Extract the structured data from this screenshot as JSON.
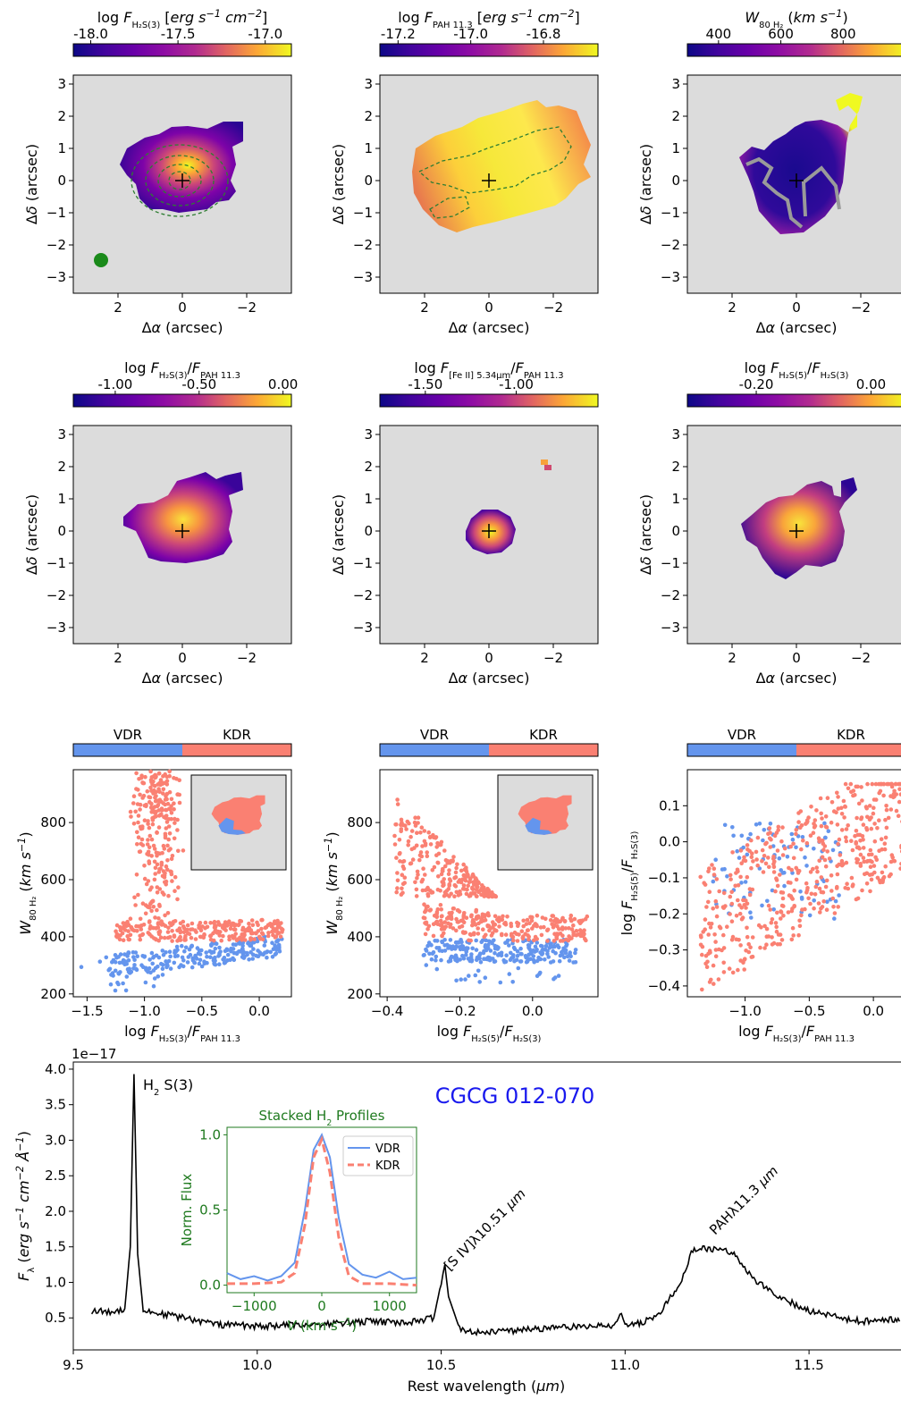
{
  "colors": {
    "map_bg": "#dcdcdc",
    "vdr": "#6495ed",
    "kdr": "#fa8072",
    "contour_dark": "#2e7d32",
    "gray_contour": "#909090",
    "psf": "#1a8a1a",
    "label_blue": "#1a1aee",
    "inset_green": "#1f7a1f"
  },
  "icons": {
    "center_marker": "plus-cross",
    "psf_marker": "filled-circle"
  },
  "maps": [
    {
      "title": "log F_H2S(3) [erg s^-1 cm^-2]",
      "cbar_ticks": [
        "-18.0",
        "-17.5",
        "-17.0"
      ],
      "cbar_range": [
        -18.1,
        -16.85
      ],
      "cbar_tick_values": [
        -18.0,
        -17.5,
        -17.0
      ],
      "xlabel": "Δα (arcsec)",
      "ylabel": "Δδ (arcsec)",
      "x_ticks": [
        "2",
        "0",
        "−2"
      ],
      "y_ticks": [
        "3",
        "2",
        "1",
        "0",
        "−1",
        "−2",
        "−3"
      ],
      "has_contours": true,
      "has_psf": true
    },
    {
      "title": "log F_PAH11.3 [erg s^-1 cm^-2]",
      "cbar_ticks": [
        "-17.2",
        "-17.0",
        "-16.8"
      ],
      "cbar_range": [
        -17.25,
        -16.65
      ],
      "cbar_tick_values": [
        -17.2,
        -17.0,
        -16.8
      ],
      "xlabel": "Δα (arcsec)",
      "ylabel": "Δδ (arcsec)",
      "x_ticks": [
        "2",
        "0",
        "−2"
      ],
      "y_ticks": [
        "3",
        "2",
        "1",
        "0",
        "−1",
        "−2",
        "−3"
      ],
      "has_contours": true,
      "has_psf": false
    },
    {
      "title": "W80 H2 (km s^-1)",
      "cbar_ticks": [
        "400",
        "600",
        "800"
      ],
      "cbar_range": [
        300,
        1000
      ],
      "cbar_tick_values": [
        400,
        600,
        800
      ],
      "xlabel": "Δα (arcsec)",
      "ylabel": "Δδ (arcsec)",
      "x_ticks": [
        "2",
        "0",
        "−2"
      ],
      "y_ticks": [
        "3",
        "2",
        "1",
        "0",
        "−1",
        "−2",
        "−3"
      ],
      "has_contours": true,
      "has_psf": false
    },
    {
      "title": "log F_H2S(3)/F_PAH11.3",
      "cbar_ticks": [
        "-1.00",
        "-0.50",
        "0.00"
      ],
      "cbar_range": [
        -1.25,
        0.05
      ],
      "cbar_tick_values": [
        -1.0,
        -0.5,
        0.0
      ],
      "xlabel": "Δα (arcsec)",
      "ylabel": "Δδ (arcsec)",
      "x_ticks": [
        "2",
        "0",
        "−2"
      ],
      "y_ticks": [
        "3",
        "2",
        "1",
        "0",
        "−1",
        "−2",
        "−3"
      ],
      "has_contours": false,
      "has_psf": false
    },
    {
      "title": "log F_[FeII]5.34μm/F_PAH11.3",
      "cbar_ticks": [
        "-1.50",
        "-1.00"
      ],
      "cbar_range": [
        -1.75,
        -0.55
      ],
      "cbar_tick_values": [
        -1.5,
        -1.0
      ],
      "xlabel": "Δα (arcsec)",
      "ylabel": "Δδ (arcsec)",
      "x_ticks": [
        "2",
        "0",
        "−2"
      ],
      "y_ticks": [
        "3",
        "2",
        "1",
        "0",
        "−1",
        "−2",
        "−3"
      ],
      "has_contours": false,
      "has_psf": false
    },
    {
      "title": "log F_H2S(5)/F_H2S(3)",
      "cbar_ticks": [
        "-0.20",
        "0.00"
      ],
      "cbar_range": [
        -0.32,
        0.06
      ],
      "cbar_tick_values": [
        -0.2,
        0.0
      ],
      "xlabel": "Δα (arcsec)",
      "ylabel": "Δδ (arcsec)",
      "x_ticks": [
        "2",
        "0",
        "−2"
      ],
      "y_ticks": [
        "3",
        "2",
        "1",
        "0",
        "−1",
        "−2",
        "−3"
      ],
      "has_contours": false,
      "has_psf": false
    }
  ],
  "chart_data": [
    {
      "type": "scatter",
      "id": "scatter1",
      "legend_bar": [
        "VDR",
        "KDR"
      ],
      "xlabel": "log F_H2S(3)/F_PAH11.3",
      "ylabel": "W80 H2 (km s^-1)",
      "x_ticks": [
        -1.5,
        -1.0,
        -0.5,
        0.0
      ],
      "y_ticks": [
        200,
        400,
        600,
        800
      ],
      "xlim": [
        -1.62,
        0.28
      ],
      "ylim": [
        190,
        985
      ],
      "series": [
        {
          "name": "VDR",
          "x_range": [
            -1.55,
            0.2
          ],
          "y_range": [
            220,
            410
          ]
        },
        {
          "name": "KDR",
          "x_range": [
            -1.3,
            0.22
          ],
          "y_range": [
            370,
            980
          ]
        }
      ],
      "has_inset": true
    },
    {
      "type": "scatter",
      "id": "scatter2",
      "legend_bar": [
        "VDR",
        "KDR"
      ],
      "xlabel": "log F_H2S(5)/F_H2S(3)",
      "ylabel": "W80 H2 (km s^-1)",
      "x_ticks": [
        -0.4,
        -0.2,
        0.0
      ],
      "y_ticks": [
        200,
        400,
        600,
        800
      ],
      "xlim": [
        -0.42,
        0.18
      ],
      "ylim": [
        190,
        985
      ],
      "series": [
        {
          "name": "VDR",
          "x_range": [
            -0.32,
            0.12
          ],
          "y_range": [
            210,
            395
          ]
        },
        {
          "name": "KDR",
          "x_range": [
            -0.4,
            0.15
          ],
          "y_range": [
            370,
            890
          ]
        }
      ],
      "has_inset": true
    },
    {
      "type": "scatter",
      "id": "scatter3",
      "legend_bar": [
        "VDR",
        "KDR"
      ],
      "xlabel": "log F_H2S(3)/F_PAH11.3",
      "ylabel": "log F_H2S(5)/F_H2S(3)",
      "x_ticks": [
        -1.0,
        -0.5,
        0.0
      ],
      "y_ticks": [
        0.1,
        0.0,
        -0.1,
        -0.2,
        -0.3,
        -0.4
      ],
      "xlim": [
        -1.45,
        0.25
      ],
      "ylim": [
        -0.43,
        0.2
      ],
      "series": [
        {
          "name": "VDR",
          "x_range": [
            -1.25,
            -0.2
          ],
          "y_range": [
            -0.25,
            0.07
          ]
        },
        {
          "name": "KDR",
          "x_range": [
            -1.35,
            0.25
          ],
          "y_range": [
            -0.41,
            0.16
          ]
        }
      ],
      "has_inset": false
    },
    {
      "type": "line",
      "id": "spectrum",
      "label": "CGCG 012-070",
      "xlabel": "Rest wavelength (μm)",
      "ylabel": "F_λ (erg s^-1 cm^-2 Å^-1)",
      "y_exponent": "1e−17",
      "x_ticks": [
        9.5,
        10.0,
        10.5,
        11.0,
        11.5
      ],
      "y_ticks": [
        0.5,
        1.0,
        1.5,
        2.0,
        2.5,
        3.0,
        3.5,
        4.0
      ],
      "xlim": [
        9.5,
        11.75
      ],
      "ylim": [
        0.05,
        4.1
      ],
      "annotations": [
        {
          "text": "H2 S(3)",
          "x": 9.665,
          "y": 3.95
        },
        {
          "text": "[S IV]λ10.51 μm",
          "x": 10.51,
          "y": 1.3
        },
        {
          "text": "PAHλ11.3 μm",
          "x": 11.27,
          "y": 1.55
        }
      ],
      "points": [
        [
          9.55,
          0.6
        ],
        [
          9.6,
          0.58
        ],
        [
          9.64,
          0.63
        ],
        [
          9.655,
          1.5
        ],
        [
          9.665,
          3.93
        ],
        [
          9.675,
          1.4
        ],
        [
          9.69,
          0.6
        ],
        [
          9.75,
          0.55
        ],
        [
          9.8,
          0.5
        ],
        [
          9.85,
          0.45
        ],
        [
          9.9,
          0.4
        ],
        [
          9.95,
          0.4
        ],
        [
          10.0,
          0.38
        ],
        [
          10.1,
          0.4
        ],
        [
          10.2,
          0.42
        ],
        [
          10.3,
          0.45
        ],
        [
          10.4,
          0.43
        ],
        [
          10.48,
          0.5
        ],
        [
          10.5,
          1.0
        ],
        [
          10.51,
          1.25
        ],
        [
          10.52,
          0.8
        ],
        [
          10.55,
          0.35
        ],
        [
          10.6,
          0.3
        ],
        [
          10.7,
          0.32
        ],
        [
          10.8,
          0.36
        ],
        [
          10.9,
          0.38
        ],
        [
          10.97,
          0.4
        ],
        [
          10.99,
          0.55
        ],
        [
          11.0,
          0.42
        ],
        [
          11.05,
          0.43
        ],
        [
          11.1,
          0.6
        ],
        [
          11.15,
          1.0
        ],
        [
          11.18,
          1.4
        ],
        [
          11.2,
          1.5
        ],
        [
          11.23,
          1.45
        ],
        [
          11.27,
          1.48
        ],
        [
          11.3,
          1.38
        ],
        [
          11.35,
          1.05
        ],
        [
          11.4,
          0.85
        ],
        [
          11.45,
          0.72
        ],
        [
          11.5,
          0.6
        ],
        [
          11.55,
          0.55
        ],
        [
          11.6,
          0.48
        ],
        [
          11.65,
          0.45
        ],
        [
          11.7,
          0.47
        ],
        [
          11.75,
          0.48
        ]
      ],
      "inset": {
        "title": "Stacked H2 Profiles",
        "xlabel": "V (km s^-1)",
        "ylabel": "Norm. Flux",
        "x_ticks": [
          -1000,
          0,
          1000
        ],
        "y_ticks": [
          0.0,
          0.5,
          1.0
        ],
        "xlim": [
          -1400,
          1400
        ],
        "ylim": [
          -0.05,
          1.05
        ],
        "series": [
          {
            "name": "VDR",
            "points": [
              [
                -1400,
                0.08
              ],
              [
                -1200,
                0.04
              ],
              [
                -1000,
                0.06
              ],
              [
                -800,
                0.03
              ],
              [
                -600,
                0.06
              ],
              [
                -400,
                0.15
              ],
              [
                -250,
                0.5
              ],
              [
                -120,
                0.9
              ],
              [
                0,
                1.0
              ],
              [
                120,
                0.85
              ],
              [
                250,
                0.45
              ],
              [
                400,
                0.14
              ],
              [
                600,
                0.07
              ],
              [
                800,
                0.05
              ],
              [
                1000,
                0.09
              ],
              [
                1200,
                0.04
              ],
              [
                1400,
                0.05
              ]
            ]
          },
          {
            "name": "KDR",
            "points": [
              [
                -1400,
                0.01
              ],
              [
                -1000,
                0.01
              ],
              [
                -600,
                0.02
              ],
              [
                -400,
                0.08
              ],
              [
                -250,
                0.4
              ],
              [
                -120,
                0.85
              ],
              [
                0,
                0.97
              ],
              [
                120,
                0.75
              ],
              [
                250,
                0.32
              ],
              [
                400,
                0.06
              ],
              [
                600,
                0.01
              ],
              [
                1000,
                0.01
              ],
              [
                1400,
                0.0
              ]
            ]
          }
        ]
      }
    }
  ]
}
